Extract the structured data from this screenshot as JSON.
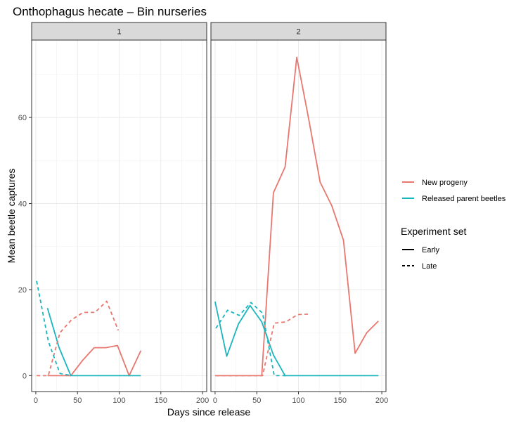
{
  "chart_data": {
    "type": "line",
    "title": "Onthophagus hecate – Bin nurseries",
    "xlabel": "Days since release",
    "ylabel": "Mean  beetle captures",
    "xlim": [
      -5,
      205
    ],
    "ylim": [
      -3.7,
      78
    ],
    "x_ticks": [
      "0",
      "50",
      "100",
      "150",
      "200"
    ],
    "y_ticks": [
      "0",
      "20",
      "40",
      "60"
    ],
    "grid": true,
    "legend_position": "right",
    "facets": [
      {
        "label": "1",
        "series": [
          {
            "name": "New progeny",
            "set": "Early",
            "points": [
              [
                14,
                0
              ],
              [
                28,
                0
              ],
              [
                42,
                0
              ],
              [
                56,
                3.5
              ],
              [
                70,
                6.5
              ],
              [
                84,
                6.5
              ],
              [
                98,
                7
              ],
              [
                112,
                0
              ],
              [
                126,
                5.8
              ]
            ]
          },
          {
            "name": "Released parent beetles",
            "set": "Early",
            "points": [
              [
                14,
                15.7
              ],
              [
                28,
                6.5
              ],
              [
                42,
                0
              ],
              [
                56,
                0
              ],
              [
                70,
                0
              ],
              [
                84,
                0
              ],
              [
                98,
                0
              ],
              [
                112,
                0
              ],
              [
                126,
                0
              ]
            ]
          },
          {
            "name": "New progeny",
            "set": "Late",
            "points": [
              [
                1,
                0
              ],
              [
                15,
                0
              ],
              [
                29,
                10
              ],
              [
                43,
                13
              ],
              [
                57,
                14.7
              ],
              [
                71,
                14.7
              ],
              [
                85,
                17.3
              ],
              [
                99,
                10.5
              ]
            ]
          },
          {
            "name": "Released parent beetles",
            "set": "Late",
            "points": [
              [
                1,
                22
              ],
              [
                15,
                8
              ],
              [
                29,
                0.5
              ],
              [
                43,
                0
              ]
            ]
          }
        ]
      },
      {
        "label": "2",
        "series": [
          {
            "name": "New progeny",
            "set": "Early",
            "points": [
              [
                0,
                0
              ],
              [
                14,
                0
              ],
              [
                28,
                0
              ],
              [
                42,
                0
              ],
              [
                56,
                0
              ],
              [
                70,
                42.5
              ],
              [
                84,
                48.5
              ],
              [
                98,
                74
              ],
              [
                112,
                60
              ],
              [
                126,
                45
              ],
              [
                140,
                39.5
              ],
              [
                154,
                31.5
              ],
              [
                168,
                5.2
              ],
              [
                182,
                10
              ],
              [
                196,
                12.7
              ]
            ]
          },
          {
            "name": "Released parent beetles",
            "set": "Early",
            "points": [
              [
                0,
                17.2
              ],
              [
                14,
                4.5
              ],
              [
                28,
                12
              ],
              [
                42,
                16.3
              ],
              [
                56,
                12.5
              ],
              [
                70,
                4.8
              ],
              [
                84,
                0
              ],
              [
                98,
                0
              ],
              [
                112,
                0
              ],
              [
                126,
                0
              ],
              [
                140,
                0
              ],
              [
                154,
                0
              ],
              [
                168,
                0
              ],
              [
                182,
                0
              ],
              [
                196,
                0
              ]
            ]
          },
          {
            "name": "New progeny",
            "set": "Late",
            "points": [
              [
                1,
                0
              ],
              [
                15,
                0
              ],
              [
                29,
                0
              ],
              [
                43,
                0
              ],
              [
                57,
                0
              ],
              [
                71,
                12.2
              ],
              [
                85,
                12.5
              ],
              [
                99,
                14.2
              ],
              [
                113,
                14.3
              ]
            ]
          },
          {
            "name": "Released parent beetles",
            "set": "Late",
            "points": [
              [
                1,
                11
              ],
              [
                15,
                15.2
              ],
              [
                29,
                14
              ],
              [
                43,
                17
              ],
              [
                57,
                14.5
              ],
              [
                71,
                0
              ],
              [
                85,
                0
              ]
            ]
          }
        ]
      }
    ],
    "legend": {
      "colour_entries": [
        {
          "label": "New progeny",
          "color": "#E8776F"
        },
        {
          "label": "Released parent beetles",
          "color": "#1BB6BD"
        }
      ],
      "linetype_title": "Experiment set",
      "linetype_entries": [
        {
          "label": "Early",
          "dash": "solid"
        },
        {
          "label": "Late",
          "dash": "dashed"
        }
      ]
    }
  }
}
